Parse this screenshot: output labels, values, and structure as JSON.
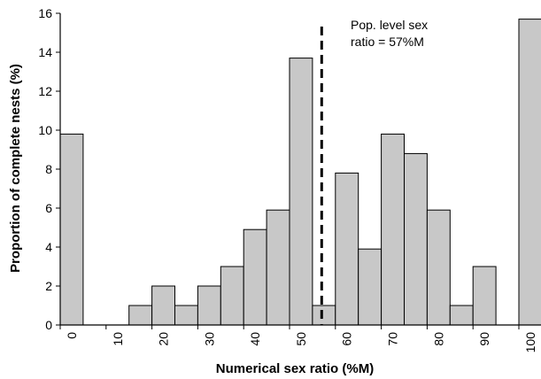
{
  "chart_data": {
    "type": "bar",
    "xlabel": "Numerical sex ratio (%M)",
    "ylabel": "Proportion of complete nests (%)",
    "ylim": [
      0,
      16
    ],
    "yticks": [
      0,
      2,
      4,
      6,
      8,
      10,
      12,
      14,
      16
    ],
    "xticks": [
      0,
      10,
      20,
      30,
      40,
      50,
      60,
      70,
      80,
      90,
      100
    ],
    "bars": [
      {
        "x": 0,
        "value": 9.8
      },
      {
        "x": 5,
        "value": 0
      },
      {
        "x": 10,
        "value": 0
      },
      {
        "x": 15,
        "value": 1
      },
      {
        "x": 20,
        "value": 2
      },
      {
        "x": 25,
        "value": 1
      },
      {
        "x": 30,
        "value": 2
      },
      {
        "x": 35,
        "value": 3
      },
      {
        "x": 40,
        "value": 4.9
      },
      {
        "x": 45,
        "value": 5.9
      },
      {
        "x": 50,
        "value": 13.7
      },
      {
        "x": 55,
        "value": 1
      },
      {
        "x": 60,
        "value": 7.8
      },
      {
        "x": 65,
        "value": 3.9
      },
      {
        "x": 70,
        "value": 9.8
      },
      {
        "x": 75,
        "value": 8.8
      },
      {
        "x": 80,
        "value": 5.9
      },
      {
        "x": 85,
        "value": 1
      },
      {
        "x": 90,
        "value": 3
      },
      {
        "x": 95,
        "value": 0
      },
      {
        "x": 100,
        "value": 15.7
      }
    ],
    "reference_line": {
      "x": 57,
      "style": "dashed",
      "label_line1": "Pop. level sex",
      "label_line2": "ratio = 57%M"
    },
    "colors": {
      "bar_fill": "#c8c8c8",
      "bar_stroke": "#000000"
    },
    "grid": false
  }
}
